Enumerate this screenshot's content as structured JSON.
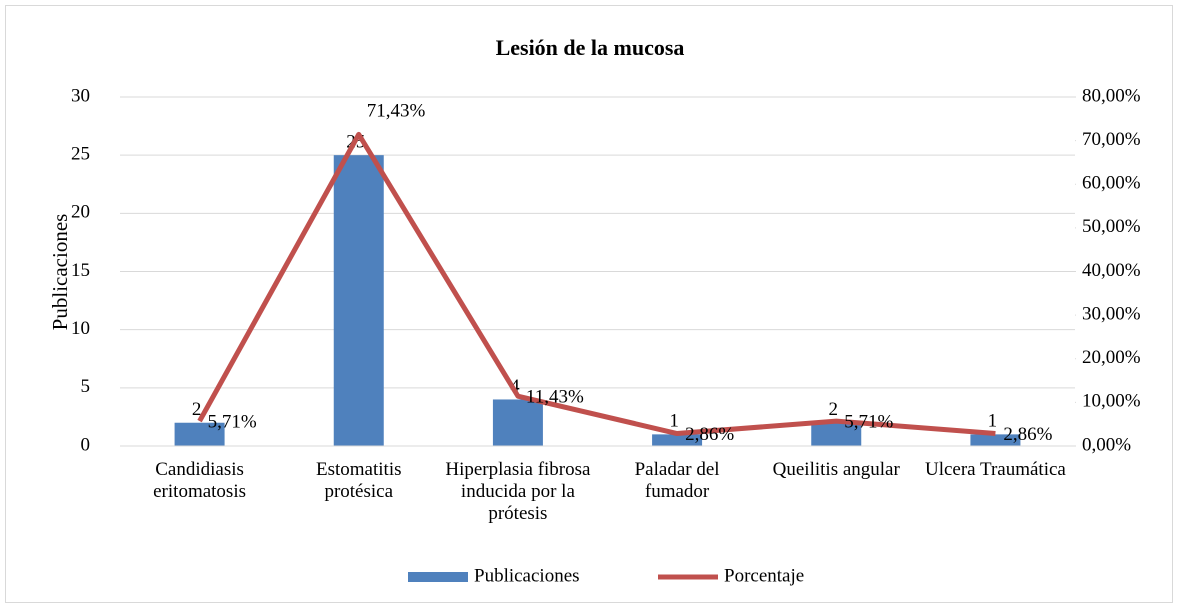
{
  "chart_data": {
    "type": "bar_line",
    "title": "Lesión de la mucosa",
    "ylabel": "Publicaciones",
    "categories": [
      "Candidiasis eritomatosis",
      "Estomatitis protésica",
      "Hiperplasia fibrosa inducida por la prótesis",
      "Paladar del fumador",
      "Queilitis angular",
      "Ulcera Traumática"
    ],
    "series": [
      {
        "name": "Publicaciones",
        "type": "bar",
        "color": "#4f81bd",
        "values": [
          2,
          25,
          4,
          1,
          2,
          1
        ]
      },
      {
        "name": "Porcentaje",
        "type": "line",
        "axis": "y2",
        "color": "#c0504d",
        "values": [
          5.71,
          71.43,
          11.43,
          2.86,
          5.71,
          2.86
        ],
        "value_labels": [
          "5,71%",
          "71,43%",
          "11,43%",
          "2,86%",
          "5,71%",
          "2,86%"
        ]
      }
    ],
    "ylim": [
      0,
      30
    ],
    "yticks": [
      0,
      5,
      10,
      15,
      20,
      25,
      30
    ],
    "y2lim": [
      0,
      80
    ],
    "y2ticks": [
      {
        "value": 0,
        "label": "0,00%"
      },
      {
        "value": 10,
        "label": "10,00%"
      },
      {
        "value": 20,
        "label": "20,00%"
      },
      {
        "value": 30,
        "label": "30,00%"
      },
      {
        "value": 40,
        "label": "40,00%"
      },
      {
        "value": 50,
        "label": "50,00%"
      },
      {
        "value": 60,
        "label": "60,00%"
      },
      {
        "value": 70,
        "label": "70,00%"
      },
      {
        "value": 80,
        "label": "80,00%"
      }
    ],
    "grid": true,
    "legend": "bottom"
  }
}
